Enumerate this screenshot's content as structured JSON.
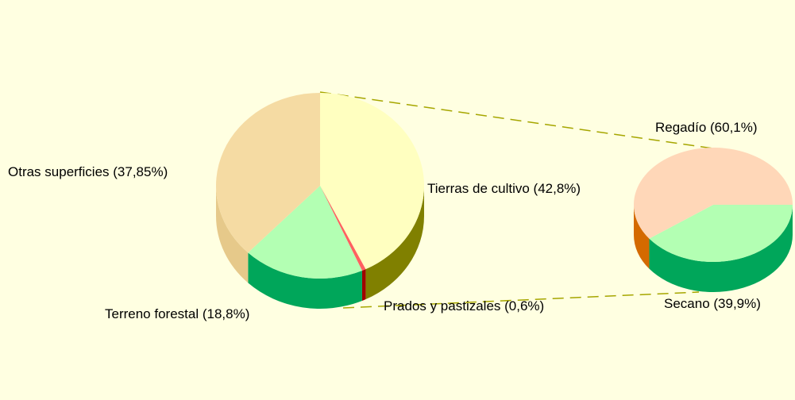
{
  "chart_data": [
    {
      "type": "pie3d",
      "labels": [
        "Tierras de cultivo (42,8%)",
        "Prados y pastizales (0,6%)",
        "Terreno forestal (18,8%)",
        "Otras superficies (37,85%)"
      ],
      "values": [
        42.8,
        0.6,
        18.8,
        37.85
      ],
      "colors": [
        "#ffffc0",
        "#ff6060",
        "#b3ffb3",
        "#f5dba3"
      ],
      "side_colors": [
        "#808000",
        "#a00000",
        "#00a65a",
        "#e6c98a"
      ]
    },
    {
      "type": "pie3d",
      "labels": [
        "Secano (39,9%)",
        "Regadío (60,1%)"
      ],
      "values": [
        39.9,
        60.1
      ],
      "colors": [
        "#b3ffb3",
        "#ffd7b8"
      ],
      "side_colors": [
        "#00a65a",
        "#d46a00"
      ]
    }
  ]
}
